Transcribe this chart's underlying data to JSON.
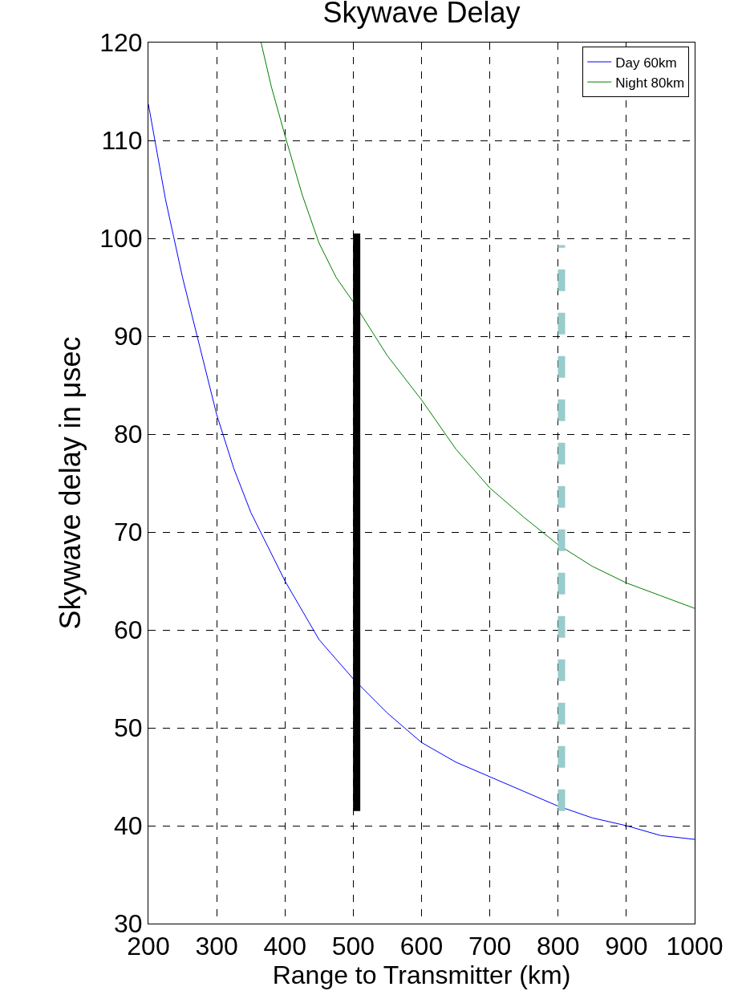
{
  "chart_data": {
    "type": "line",
    "title": "Skywave Delay",
    "xlabel": "Range to Transmitter (km)",
    "ylabel": "Skywave delay in μsec",
    "xlim": [
      200,
      1000
    ],
    "xticks": [
      200,
      300,
      400,
      500,
      600,
      700,
      800,
      900,
      1000
    ],
    "ylim": [
      30,
      120
    ],
    "yticks": [
      30,
      40,
      50,
      60,
      70,
      80,
      90,
      100,
      110,
      120
    ],
    "grid": true,
    "legend": "top right",
    "marker": "none",
    "series": [
      {
        "name": "Day 60km",
        "color": "#0000ff",
        "line_style": "solid",
        "x": [
          200,
          225,
          250,
          275,
          300,
          325,
          350,
          375,
          400,
          450,
          500,
          550,
          600,
          650,
          700,
          750,
          800,
          850,
          900,
          950,
          1000
        ],
        "values": [
          113.7,
          104,
          96,
          89,
          82,
          76.5,
          72,
          68.5,
          65,
          59,
          55,
          51.5,
          48.5,
          46.5,
          45,
          43.5,
          42,
          40.8,
          40,
          39,
          38.6
        ]
      },
      {
        "name": "Night 80km",
        "color": "#008000",
        "line_style": "solid",
        "x": [
          365,
          380,
          400,
          425,
          450,
          475,
          500,
          550,
          600,
          650,
          700,
          750,
          800,
          850,
          900,
          950,
          1000
        ],
        "values": [
          120,
          115.5,
          110.5,
          104.5,
          99.5,
          96,
          93.5,
          88,
          83.5,
          78.5,
          74.5,
          71.5,
          68.7,
          66.5,
          64.8,
          63.5,
          62.2
        ]
      },
      {
        "color": "#000000",
        "line_style": "solid",
        "x": [
          505,
          505
        ],
        "values": [
          41.5,
          100.5
        ]
      },
      {
        "color": "#99cccc",
        "line_style": "dashed",
        "x": [
          805,
          805
        ],
        "values": [
          41.5,
          99.3
        ]
      }
    ]
  }
}
